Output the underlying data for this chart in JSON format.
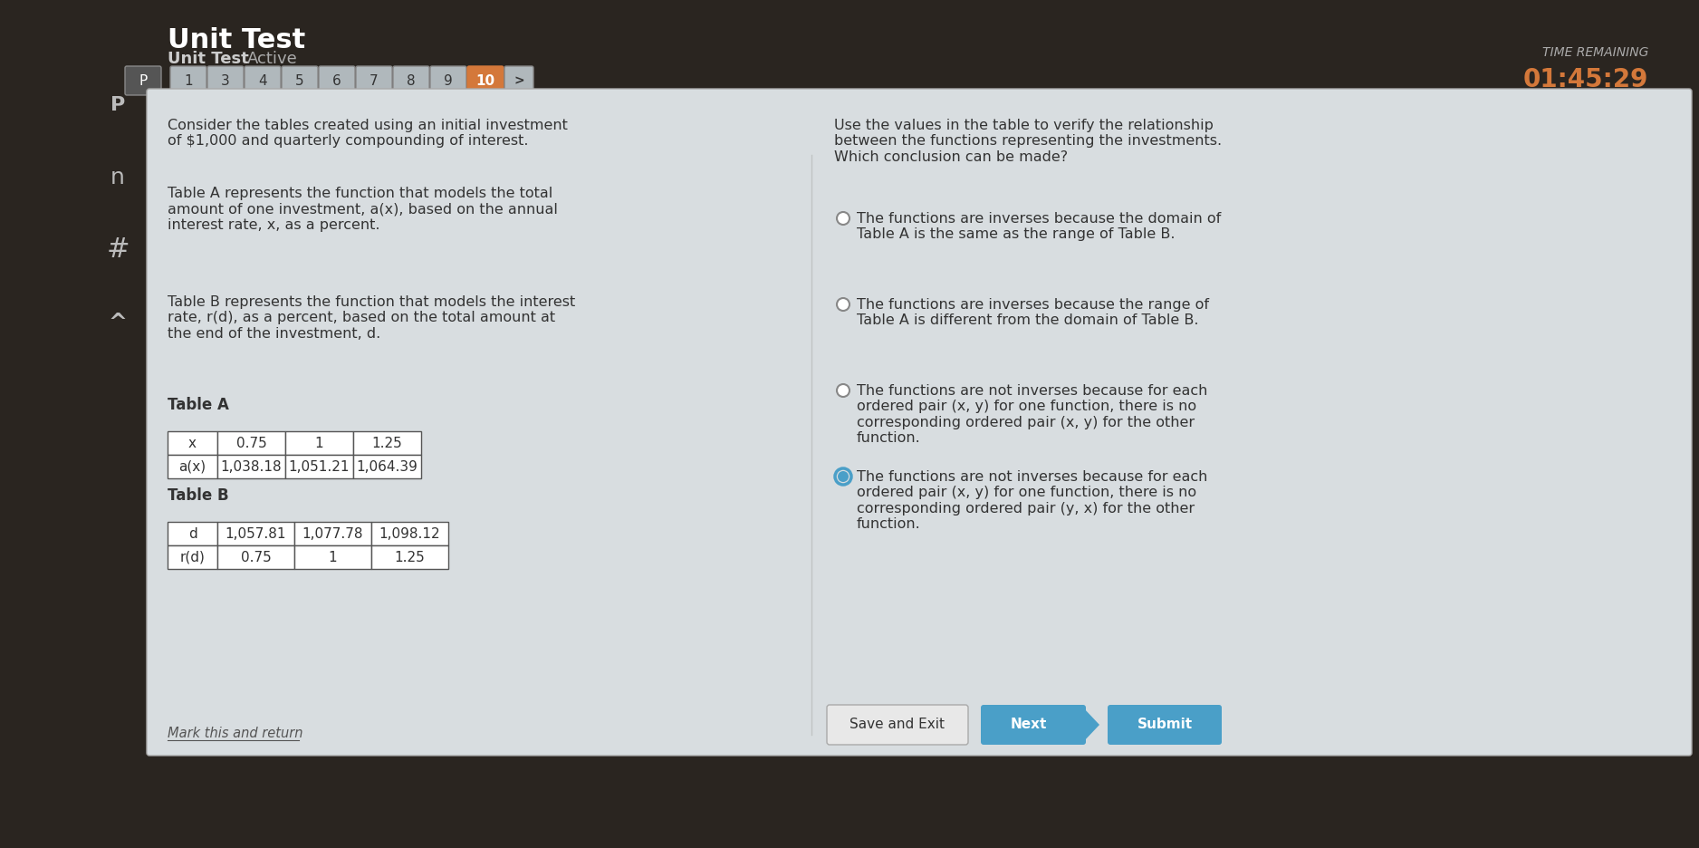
{
  "bg_dark": "#2a2520",
  "bg_panel": "#d8dde0",
  "title": "Unit Test",
  "subtitle": "Unit Test",
  "subtitle2": "Active",
  "nav_buttons": [
    "1",
    "3",
    "4",
    "5",
    "6",
    "7",
    "8",
    "9",
    "10"
  ],
  "nav_active": "10",
  "time_label": "TIME REMAINING",
  "time_value": "01:45:29",
  "left_text_1": "Consider the tables created using an initial investment\nof $1,000 and quarterly compounding of interest.",
  "left_text_2": "Table A represents the function that models the total\namount of one investment, a(x), based on the annual\ninterest rate, x, as a percent.",
  "left_text_3": "Table B represents the function that models the interest\nrate, r(d), as a percent, based on the total amount at\nthe end of the investment, d.",
  "table_a_label": "Table A",
  "table_a_headers": [
    "x",
    "0.75",
    "1",
    "1.25"
  ],
  "table_a_row": [
    "a(x)",
    "1,038.18",
    "1,051.21",
    "1,064.39"
  ],
  "table_b_label": "Table B",
  "table_b_headers": [
    "d",
    "1,057.81",
    "1,077.78",
    "1,098.12"
  ],
  "table_b_row": [
    "r(d)",
    "0.75",
    "1",
    "1.25"
  ],
  "right_question": "Use the values in the table to verify the relationship\nbetween the functions representing the investments.\nWhich conclusion can be made?",
  "options": [
    "The functions are inverses because the domain of\nTable A is the same as the range of Table B.",
    "The functions are inverses because the range of\nTable A is different from the domain of Table B.",
    "The functions are not inverses because for each\nordered pair (x, y) for one function, there is no\ncorresponding ordered pair (x, y) for the other\nfunction.",
    "The functions are not inverses because for each\nordered pair (x, y) for one function, there is no\ncorresponding ordered pair (y, x) for the other\nfunction."
  ],
  "selected_option": 3,
  "btn_save": "Save and Exit",
  "btn_next": "Next",
  "btn_submit": "Submit",
  "mark_return": "Mark this and return",
  "nav_btn_color": "#b0b8bc",
  "nav_active_color": "#d4783a",
  "btn_save_color": "#e8e8e8",
  "btn_next_color": "#4a9fc8",
  "btn_submit_color": "#4a9fc8",
  "radio_selected_color": "#4a9fc8",
  "radio_unselected_color": "#888888",
  "text_color_dark": "#222222",
  "text_color_light": "#ffffff",
  "text_color_panel": "#333333"
}
